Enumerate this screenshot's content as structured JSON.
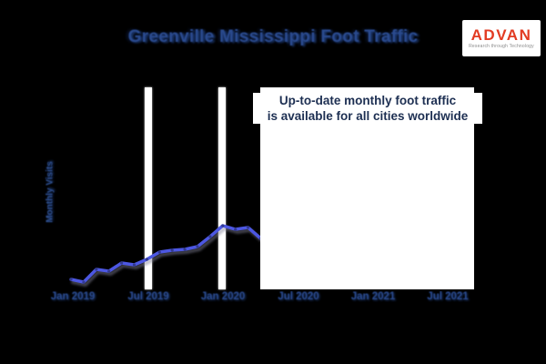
{
  "title": "Greenville Mississippi Foot Traffic",
  "logo": {
    "brand": "ADVAN",
    "tagline": "Research through Technology",
    "brand_color": "#e23b22"
  },
  "annotation": {
    "line1": "Up-to-date monthly foot traffic",
    "line2": "is available for all cities worldwide"
  },
  "colors": {
    "background": "#000000",
    "line": "#4c57e2",
    "title_text": "#2a4a8e",
    "tick_text": "#2a4a8e",
    "annotation_text": "#1d2f52",
    "gridline_bars": "#ffffff"
  },
  "chart_data": {
    "type": "line",
    "title": "Greenville Mississippi Foot Traffic",
    "xlabel": "",
    "ylabel": "Monthly Visits",
    "x_tick_labels": [
      "Jan 2019",
      "Jul 2019",
      "Jan 2020",
      "Jul 2020",
      "Jan 2021",
      "Jul 2021"
    ],
    "x": [
      "Jan 2019",
      "Feb 2019",
      "Mar 2019",
      "Apr 2019",
      "May 2019",
      "Jun 2019",
      "Jul 2019",
      "Aug 2019",
      "Sep 2019",
      "Oct 2019",
      "Nov 2019",
      "Dec 2019",
      "Jan 2020",
      "Feb 2020",
      "Mar 2020",
      "Apr 2020"
    ],
    "values": [
      11,
      8,
      22,
      20,
      29,
      27,
      33,
      41,
      43,
      44,
      47,
      58,
      70,
      66,
      68,
      56
    ],
    "units": "relative foot traffic (no numeric y-axis scale shown)",
    "ylim": [
      0,
      100
    ],
    "legend_position": "none",
    "grid": "two white vertical bars at Jul 2019 and Jan 2020 tick positions",
    "annotation": "white overlay box hides data from ~Apr 2020 onward"
  }
}
